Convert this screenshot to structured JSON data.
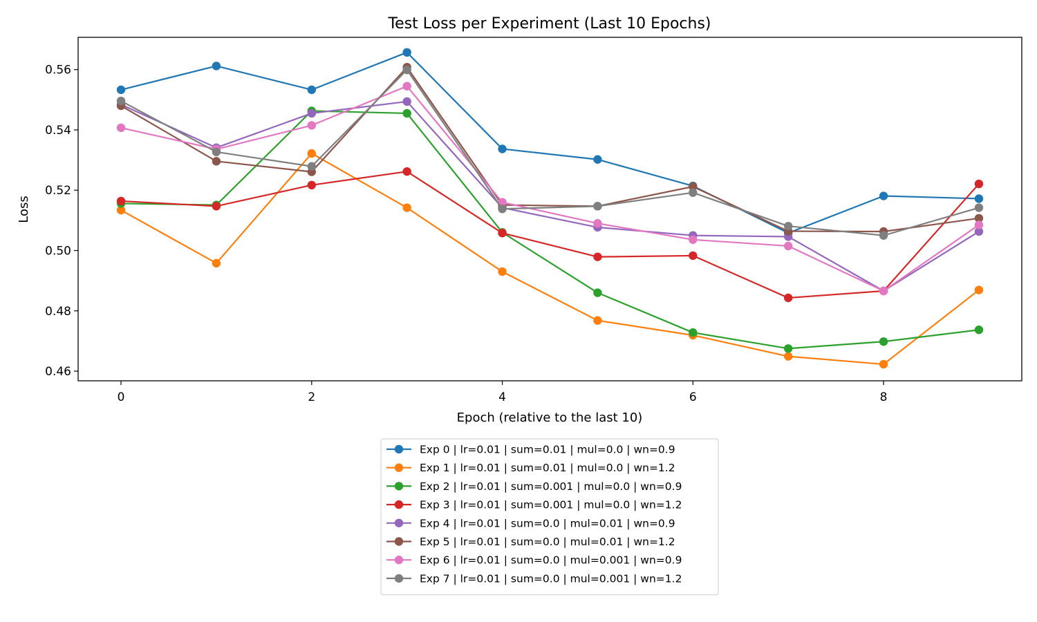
{
  "chart_data": {
    "type": "line",
    "title": "Test Loss per Experiment (Last 10 Epochs)",
    "xlabel": "Epoch (relative to the last 10)",
    "ylabel": "Loss",
    "xlim": [
      -0.45,
      9.45
    ],
    "ylim": [
      0.4568,
      0.5707
    ],
    "xticks": [
      0,
      2,
      4,
      6,
      8
    ],
    "yticks": [
      0.46,
      0.48,
      0.5,
      0.52,
      0.54,
      0.56
    ],
    "ytick_labels": [
      "0.46",
      "0.48",
      "0.50",
      "0.52",
      "0.54",
      "0.56"
    ],
    "x": [
      0,
      1,
      2,
      3,
      4,
      5,
      6,
      7,
      8,
      9
    ],
    "grid": false,
    "legend_position": "below the plot",
    "series": [
      {
        "name": "Exp 0 | lr=0.01 | sum=0.01 | mul=0.0 | wn=0.9",
        "color": "#1f77b4",
        "values": [
          0.5533,
          0.5612,
          0.5533,
          0.5657,
          0.5337,
          0.5302,
          0.5214,
          0.5058,
          0.5181,
          0.5172
        ]
      },
      {
        "name": "Exp 1 | lr=0.01 | sum=0.01 | mul=0.0 | wn=1.2",
        "color": "#ff7f0e",
        "values": [
          0.5134,
          0.4958,
          0.5322,
          0.5142,
          0.493,
          0.4768,
          0.4719,
          0.4649,
          0.4623,
          0.4869
        ]
      },
      {
        "name": "Exp 2 | lr=0.01 | sum=0.001 | mul=0.0 | wn=0.9",
        "color": "#2ca02c",
        "values": [
          0.5156,
          0.5151,
          0.5463,
          0.5455,
          0.506,
          0.486,
          0.4728,
          0.4675,
          0.4698,
          0.4737
        ]
      },
      {
        "name": "Exp 3 | lr=0.01 | sum=0.001 | mul=0.0 | wn=1.2",
        "color": "#d62728",
        "values": [
          0.5164,
          0.5147,
          0.5217,
          0.5262,
          0.5058,
          0.4979,
          0.4983,
          0.4843,
          0.4866,
          0.5221
        ]
      },
      {
        "name": "Exp 4 | lr=0.01 | sum=0.0 | mul=0.01 | wn=0.9",
        "color": "#9467bd",
        "values": [
          0.5484,
          0.5341,
          0.5455,
          0.5494,
          0.5142,
          0.5077,
          0.505,
          0.5046,
          0.4866,
          0.5063
        ]
      },
      {
        "name": "Exp 5 | lr=0.01 | sum=0.0 | mul=0.01 | wn=1.2",
        "color": "#8c564b",
        "values": [
          0.548,
          0.5296,
          0.5261,
          0.5608,
          0.5151,
          0.5147,
          0.5212,
          0.5064,
          0.5063,
          0.5107
        ]
      },
      {
        "name": "Exp 6 | lr=0.01 | sum=0.0 | mul=0.001 | wn=0.9",
        "color": "#e377c2",
        "values": [
          0.5407,
          0.5336,
          0.5415,
          0.5545,
          0.516,
          0.509,
          0.5036,
          0.5015,
          0.4866,
          0.5085
        ]
      },
      {
        "name": "Exp 7 | lr=0.01 | sum=0.0 | mul=0.001 | wn=1.2",
        "color": "#7f7f7f",
        "values": [
          0.5496,
          0.5327,
          0.5279,
          0.5599,
          0.5138,
          0.5147,
          0.5192,
          0.5081,
          0.505,
          0.5142
        ]
      }
    ]
  }
}
